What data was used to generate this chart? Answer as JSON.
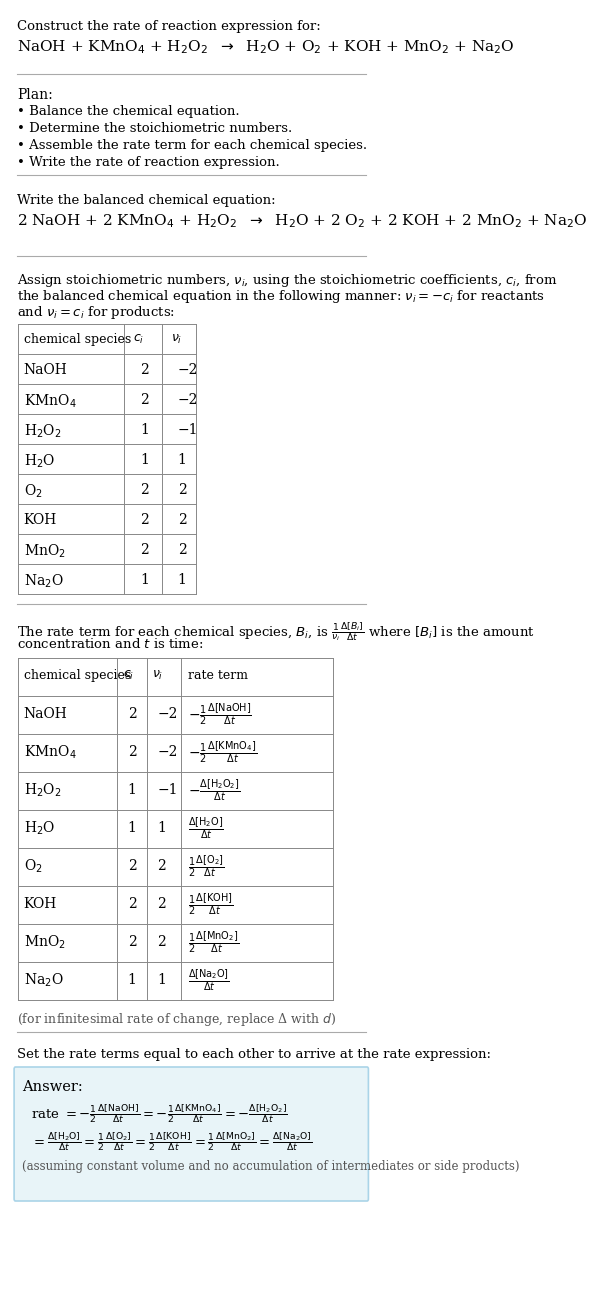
{
  "bg_color": "#ffffff",
  "text_color": "#000000",
  "title_line1": "Construct the rate of reaction expression for:",
  "reaction_unbalanced": "NaOH + KMnO$_4$ + H$_2$O$_2$  $\\rightarrow$  H$_2$O + O$_2$ + KOH + MnO$_2$ + Na$_2$O",
  "plan_title": "Plan:",
  "plan_items": [
    "Balance the chemical equation.",
    "Determine the stoichiometric numbers.",
    "Assemble the rate term for each chemical species.",
    "Write the rate of reaction expression."
  ],
  "balanced_label": "Write the balanced chemical equation:",
  "reaction_balanced": "2 NaOH + 2 KMnO$_4$ + H$_2$O$_2$  $\\rightarrow$  H$_2$O + 2 O$_2$ + 2 KOH + 2 MnO$_2$ + Na$_2$O",
  "stoich_text": "Assign stoichiometric numbers, $\\nu_i$, using the stoichiometric coefficients, $c_i$, from the balanced chemical equation in the following manner: $\\nu_i = -c_i$ for reactants and $\\nu_i = c_i$ for products:",
  "table1_headers": [
    "chemical species",
    "$c_i$",
    "$\\nu_i$"
  ],
  "table1_rows": [
    [
      "NaOH",
      "2",
      "−2"
    ],
    [
      "KMnO$_4$",
      "2",
      "−2"
    ],
    [
      "H$_2$O$_2$",
      "1",
      "−1"
    ],
    [
      "H$_2$O",
      "1",
      "1"
    ],
    [
      "O$_2$",
      "2",
      "2"
    ],
    [
      "KOH",
      "2",
      "2"
    ],
    [
      "MnO$_2$",
      "2",
      "2"
    ],
    [
      "Na$_2$O",
      "1",
      "1"
    ]
  ],
  "rate_term_text": "The rate term for each chemical species, $B_i$, is $\\frac{1}{\\nu_i}\\frac{\\Delta[B_i]}{\\Delta t}$ where $[B_i]$ is the amount concentration and $t$ is time:",
  "table2_headers": [
    "chemical species",
    "$c_i$",
    "$\\nu_i$",
    "rate term"
  ],
  "table2_rows": [
    [
      "NaOH",
      "2",
      "−2",
      "$-\\frac{1}{2}\\frac{\\Delta[\\mathrm{NaOH}]}{\\Delta t}$"
    ],
    [
      "KMnO$_4$",
      "2",
      "−2",
      "$-\\frac{1}{2}\\frac{\\Delta[\\mathrm{KMnO_4}]}{\\Delta t}$"
    ],
    [
      "H$_2$O$_2$",
      "1",
      "−1",
      "$-\\frac{\\Delta[\\mathrm{H_2O_2}]}{\\Delta t}$"
    ],
    [
      "H$_2$O",
      "1",
      "1",
      "$\\frac{\\Delta[\\mathrm{H_2O}]}{\\Delta t}$"
    ],
    [
      "O$_2$",
      "2",
      "2",
      "$\\frac{1}{2}\\frac{\\Delta[\\mathrm{O_2}]}{\\Delta t}$"
    ],
    [
      "KOH",
      "2",
      "2",
      "$\\frac{1}{2}\\frac{\\Delta[\\mathrm{KOH}]}{\\Delta t}$"
    ],
    [
      "MnO$_2$",
      "2",
      "2",
      "$\\frac{1}{2}\\frac{\\Delta[\\mathrm{MnO_2}]}{\\Delta t}$"
    ],
    [
      "Na$_2$O",
      "1",
      "1",
      "$\\frac{\\Delta[\\mathrm{Na_2O}]}{\\Delta t}$"
    ]
  ],
  "infinitesimal_note": "(for infinitesimal rate of change, replace Δ with $d$)",
  "set_equal_text": "Set the rate terms equal to each other to arrive at the rate expression:",
  "answer_box_color": "#e8f4f8",
  "answer_box_border": "#aad4e8",
  "answer_label": "Answer:",
  "answer_note": "(assuming constant volume and no accumulation of intermediates or side products)"
}
